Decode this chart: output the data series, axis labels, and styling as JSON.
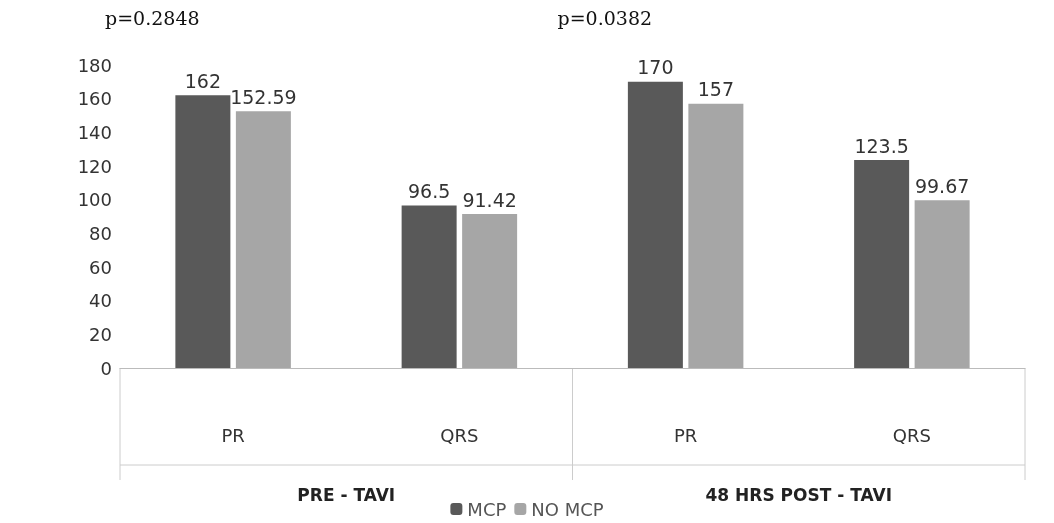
{
  "chart_data": {
    "type": "bar",
    "categories": [
      "PR",
      "QRS",
      "PR",
      "QRS"
    ],
    "series": [
      {
        "name": "MCP",
        "color": "#595959",
        "values": [
          162,
          96.5,
          170,
          123.5
        ]
      },
      {
        "name": "NO MCP",
        "color": "#a6a6a6",
        "values": [
          152.59,
          91.42,
          157,
          99.67
        ]
      }
    ],
    "ylim": [
      0,
      180
    ],
    "yticks": [
      0,
      20,
      40,
      60,
      80,
      100,
      120,
      140,
      160,
      180
    ],
    "grid": false,
    "legend": "bottom",
    "data_labels": true,
    "annotations": [
      "p=0.2848",
      "p=0.0382",
      "PRE - TAVI",
      "48 HRS POST - TAVI"
    ]
  }
}
